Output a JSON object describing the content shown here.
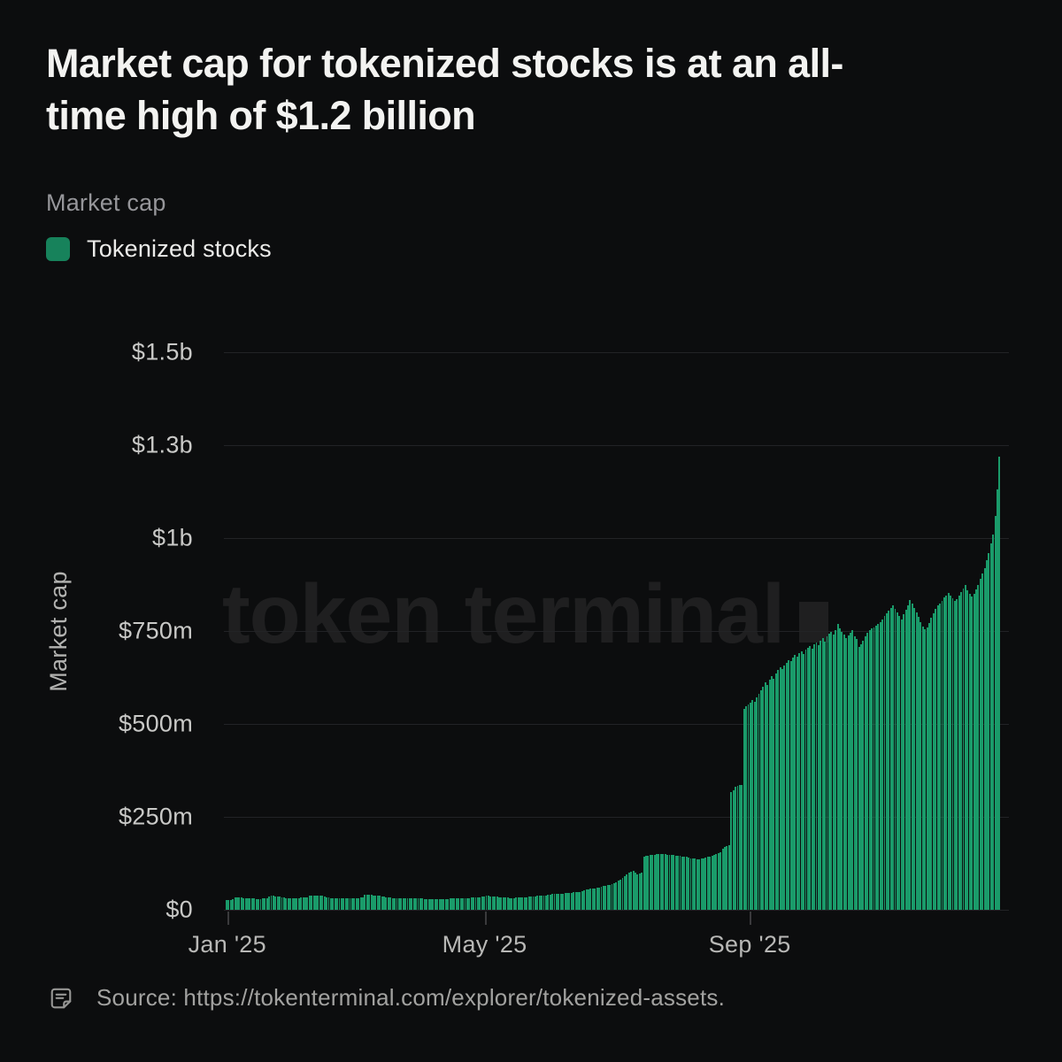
{
  "header": {
    "title_line1": "Market cap for tokenized stocks is at an all-",
    "title_line2": "time high of $1.2 billion",
    "subtitle": "Market cap"
  },
  "legend": {
    "label": "Tokenized stocks",
    "swatch_color": "#17825B"
  },
  "watermark": {
    "text": "token terminal"
  },
  "source": {
    "text": "Source: https://tokenterminal.com/explorer/tokenized-assets."
  },
  "colors": {
    "background": "#0C0D0E",
    "bar_green": "#1A9B6A",
    "gridline": "#222326",
    "title_text": "#F3F3F1",
    "muted_text": "#96969A",
    "axis_text": "#C9C9C7"
  },
  "chart_data": {
    "type": "bar",
    "title": "Market cap",
    "series_name": "Tokenized stocks",
    "ylabel": "Market cap",
    "unit": "USD millions",
    "frequency": "daily",
    "x_start": "Jan 2025",
    "x_end": "Dec 2025",
    "ylim_m": [
      0,
      1500
    ],
    "grid": "horizontal",
    "legend_position": "top-left",
    "peak_label": "$1.2 billion all-time high",
    "y_ticks": [
      {
        "label": "$1.5b",
        "value": 1500
      },
      {
        "label": "$1.3b",
        "value": 1250
      },
      {
        "label": "$1b",
        "value": 1000
      },
      {
        "label": "$750m",
        "value": 750
      },
      {
        "label": "$500m",
        "value": 500
      },
      {
        "label": "$250m",
        "value": 250
      },
      {
        "label": "$0",
        "value": 0
      }
    ],
    "x_ticks": [
      {
        "label": "Jan '25",
        "pos": 0.002
      },
      {
        "label": "May '25",
        "pos": 0.334
      },
      {
        "label": "Sep '25",
        "pos": 0.676
      }
    ],
    "values": [
      26,
      27,
      27,
      28,
      33,
      34,
      34,
      33,
      32,
      31,
      30,
      30,
      30,
      30,
      29,
      29,
      29,
      30,
      30,
      31,
      36,
      37,
      37,
      36,
      36,
      35,
      34,
      33,
      32,
      32,
      31,
      31,
      31,
      32,
      32,
      33,
      33,
      34,
      34,
      38,
      39,
      39,
      38,
      38,
      37,
      37,
      36,
      34,
      33,
      32,
      32,
      31,
      31,
      31,
      30,
      30,
      30,
      30,
      30,
      31,
      31,
      32,
      32,
      33,
      33,
      40,
      41,
      41,
      40,
      39,
      39,
      38,
      38,
      36,
      35,
      34,
      33,
      33,
      32,
      32,
      32,
      31,
      31,
      31,
      31,
      30,
      30,
      30,
      30,
      30,
      30,
      30,
      30,
      29,
      29,
      29,
      29,
      28,
      28,
      28,
      28,
      28,
      28,
      29,
      29,
      30,
      30,
      30,
      31,
      31,
      31,
      31,
      32,
      32,
      32,
      33,
      33,
      33,
      34,
      34,
      36,
      36,
      37,
      37,
      36,
      36,
      35,
      35,
      34,
      34,
      33,
      33,
      33,
      32,
      32,
      32,
      33,
      33,
      33,
      34,
      34,
      34,
      35,
      35,
      36,
      36,
      37,
      37,
      38,
      38,
      39,
      40,
      41,
      42,
      42,
      43,
      43,
      44,
      44,
      45,
      45,
      46,
      46,
      47,
      47,
      48,
      48,
      50,
      52,
      54,
      55,
      56,
      57,
      58,
      59,
      60,
      62,
      64,
      65,
      66,
      67,
      70,
      72,
      75,
      78,
      82,
      86,
      90,
      95,
      100,
      103,
      105,
      100,
      96,
      98,
      100,
      143,
      145,
      146,
      147,
      148,
      148,
      149,
      150,
      150,
      150,
      149,
      148,
      148,
      147,
      147,
      146,
      146,
      145,
      144,
      143,
      142,
      140,
      139,
      138,
      137,
      136,
      136,
      137,
      138,
      140,
      142,
      144,
      146,
      148,
      150,
      152,
      155,
      165,
      170,
      172,
      175,
      317,
      322,
      330,
      334,
      336,
      335,
      540,
      548,
      552,
      558,
      565,
      560,
      572,
      580,
      590,
      600,
      612,
      605,
      618,
      628,
      622,
      635,
      645,
      652,
      648,
      658,
      665,
      672,
      668,
      678,
      685,
      680,
      690,
      695,
      688,
      700,
      705,
      710,
      702,
      715,
      720,
      712,
      725,
      730,
      722,
      735,
      742,
      748,
      740,
      752,
      769,
      758,
      748,
      740,
      732,
      738,
      745,
      752,
      735,
      728,
      707,
      715,
      725,
      735,
      745,
      752,
      758,
      760,
      765,
      770,
      775,
      782,
      790,
      798,
      805,
      812,
      818,
      810,
      800,
      790,
      782,
      795,
      808,
      820,
      833,
      825,
      812,
      800,
      788,
      775,
      762,
      754,
      760,
      772,
      785,
      798,
      810,
      818,
      825,
      832,
      840,
      846,
      852,
      845,
      838,
      830,
      836,
      845,
      855,
      865,
      875,
      860,
      850,
      842,
      850,
      862,
      875,
      890,
      905,
      920,
      940,
      960,
      985,
      1010,
      1060,
      1130,
      1220
    ]
  }
}
